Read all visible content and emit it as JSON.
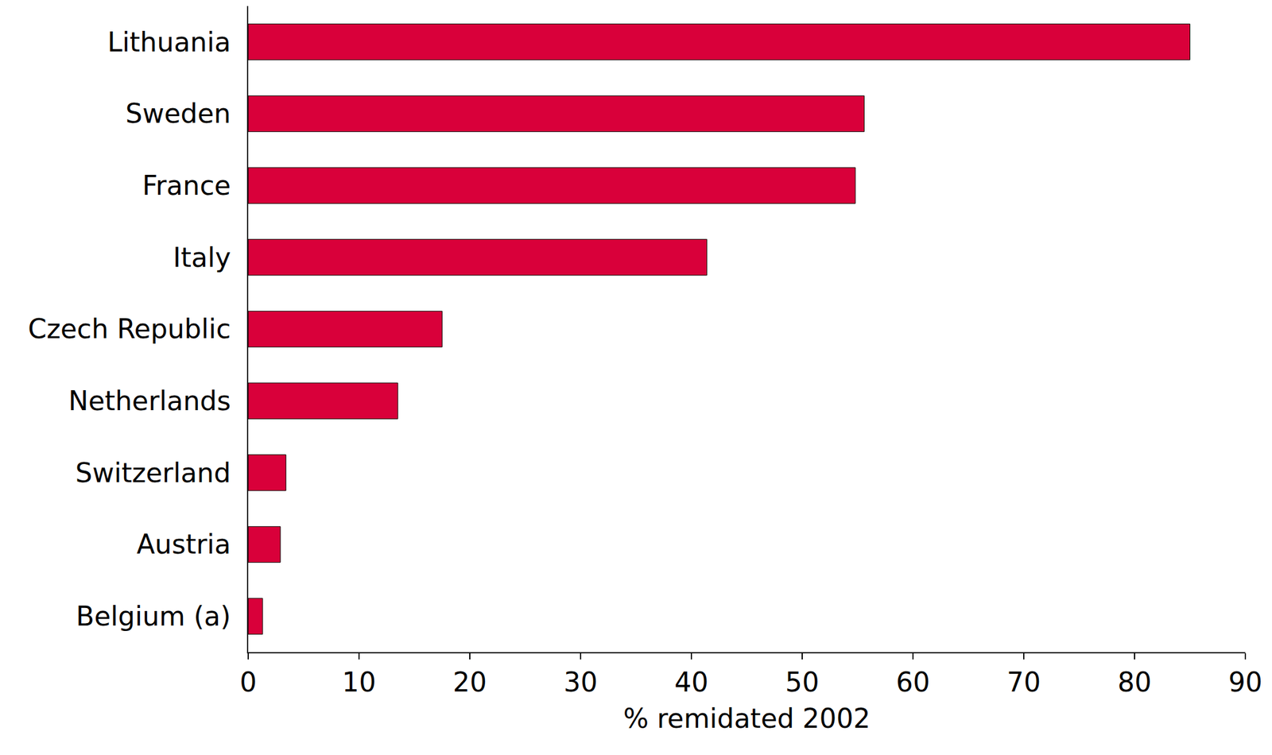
{
  "chart_data": {
    "type": "bar",
    "orientation": "horizontal",
    "categories": [
      "Lithuania",
      "Sweden",
      "France",
      "Italy",
      "Czech Republic",
      "Netherlands",
      "Switzerland",
      "Austria",
      "Belgium (a)"
    ],
    "values": [
      85,
      55.6,
      54.8,
      41.4,
      17.5,
      13.5,
      3.4,
      2.9,
      1.3
    ],
    "color": "#d9003a",
    "x_label": "% remidated 2002",
    "xlim": [
      0,
      90
    ],
    "xticks": [
      0,
      10,
      20,
      30,
      40,
      50,
      60,
      70,
      80,
      90
    ],
    "grid": false
  }
}
